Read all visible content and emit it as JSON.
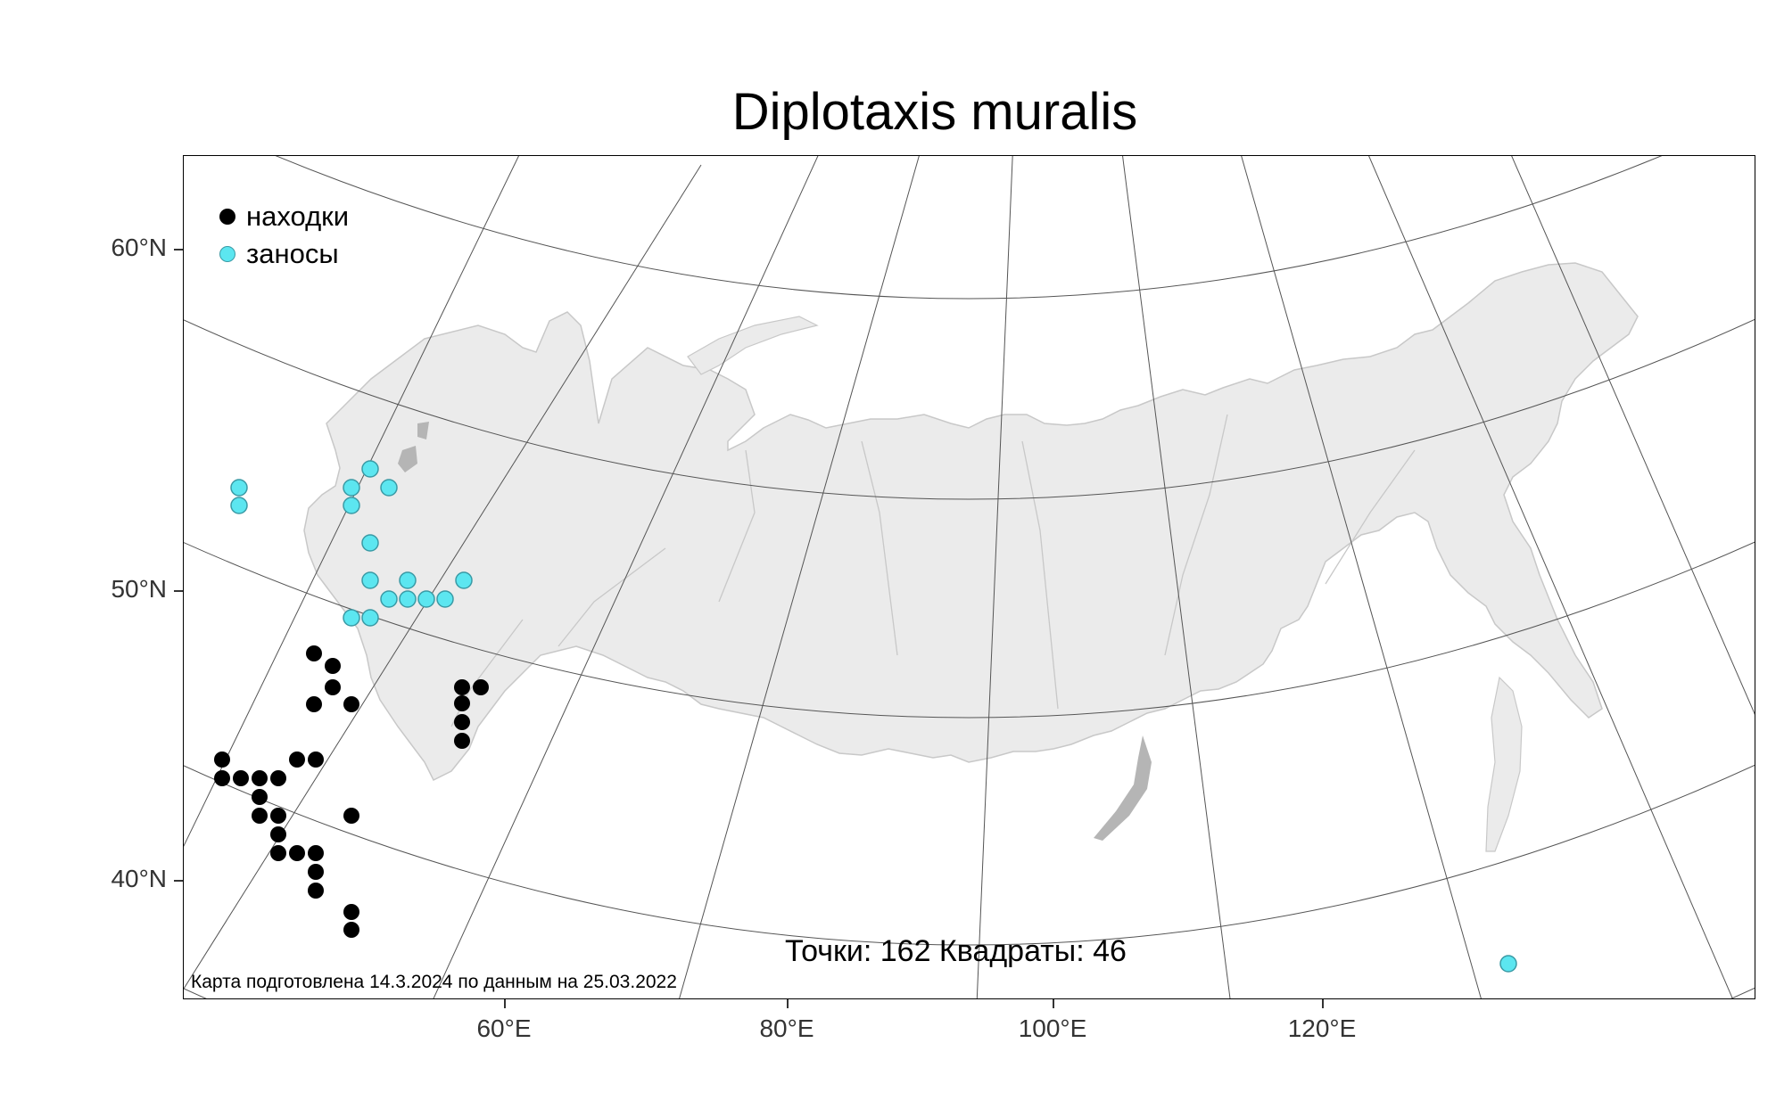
{
  "map": {
    "title": "Diplotaxis muralis",
    "lat_labels": [
      "60°N",
      "50°N",
      "40°N"
    ],
    "lon_labels": [
      "60°E",
      "80°E",
      "100°E",
      "120°E"
    ],
    "legend": [
      {
        "label": "находки",
        "color": "#000000"
      },
      {
        "label": "заносы",
        "color": "#5ce6f0"
      }
    ],
    "stats": "Точки: 162 Квадраты: 46",
    "footnote": "Карта подготовлена 14.3.2024 по данным на 25.03.2022",
    "colors": {
      "land": "#ebebeb",
      "land_border": "#c8c8c8",
      "graticule": "#555555",
      "finds": "#000000",
      "introduced": "#5ce6f0"
    }
  }
}
